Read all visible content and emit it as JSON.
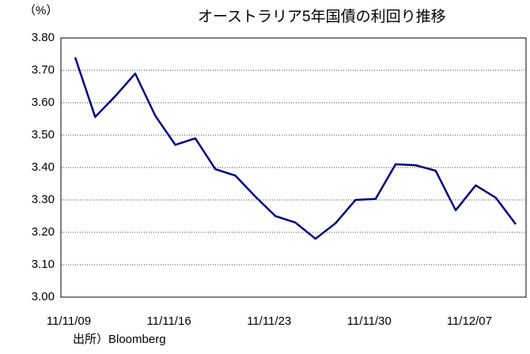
{
  "chart_data": {
    "type": "line",
    "title": "オーストラリア5年国債の利回り推移",
    "y_label": "（%）",
    "source": "出所）Bloomberg",
    "categories": [
      "11/11/09",
      null,
      null,
      null,
      null,
      "11/11/16",
      null,
      null,
      null,
      null,
      "11/11/23",
      null,
      null,
      null,
      null,
      "11/11/30",
      null,
      null,
      null,
      null,
      "11/12/07",
      null,
      null
    ],
    "series": [
      {
        "name": "オーストラリア5年国債",
        "color": "#000080",
        "values": [
          3.74,
          3.556,
          3.62,
          3.69,
          3.56,
          3.47,
          3.49,
          3.395,
          3.375,
          3.31,
          3.25,
          3.23,
          3.18,
          3.228,
          3.3,
          3.303,
          3.41,
          3.407,
          3.39,
          3.268,
          3.345,
          3.307,
          3.225
        ]
      }
    ],
    "ylim": [
      3.0,
      3.8
    ],
    "yticks": [
      {
        "value": 3.0,
        "label": "3.00"
      },
      {
        "value": 3.1,
        "label": "3.10"
      },
      {
        "value": 3.2,
        "label": "3.20"
      },
      {
        "value": 3.3,
        "label": "3.30"
      },
      {
        "value": 3.4,
        "label": "3.40"
      },
      {
        "value": 3.5,
        "label": "3.50"
      },
      {
        "value": 3.6,
        "label": "3.60"
      },
      {
        "value": 3.7,
        "label": "3.70"
      },
      {
        "value": 3.8,
        "label": "3.80"
      }
    ],
    "grid": true
  }
}
